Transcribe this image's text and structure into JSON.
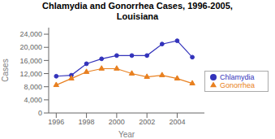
{
  "chart_data": {
    "type": "line",
    "title": "Chlamydia and Gonorrhea Cases, 1996-2005,\nLouisiana",
    "xlabel": "Year",
    "ylabel": "Cases",
    "x": [
      1996,
      1997,
      1998,
      1999,
      2000,
      2001,
      2002,
      2003,
      2004,
      2005
    ],
    "series": [
      {
        "name": "Chlamydia",
        "color": "#3333bb",
        "marker": "circle",
        "values": [
          11200,
          11500,
          15000,
          16500,
          17500,
          17500,
          17500,
          21000,
          22000,
          17000
        ]
      },
      {
        "name": "Gonorrhea",
        "color": "#e88020",
        "marker": "triangle",
        "values": [
          8500,
          10500,
          12500,
          13500,
          13500,
          12000,
          11000,
          11500,
          10500,
          9000
        ]
      }
    ],
    "xlim": [
      1995.5,
      2005.8
    ],
    "xticks": [
      1996,
      1998,
      2000,
      2002,
      2004
    ],
    "ylim": [
      0,
      26000
    ],
    "yticks": [
      0,
      {
        "value": 4000,
        "label": "4,000"
      },
      {
        "value": 8000,
        "label": "8,000"
      },
      {
        "value": 12000,
        "label": "12,000"
      },
      {
        "value": 16000,
        "label": "16,000"
      },
      {
        "value": 20000,
        "label": "20,000"
      },
      {
        "value": 24000,
        "label": "24,000"
      }
    ],
    "legend": "right",
    "grid": false
  }
}
